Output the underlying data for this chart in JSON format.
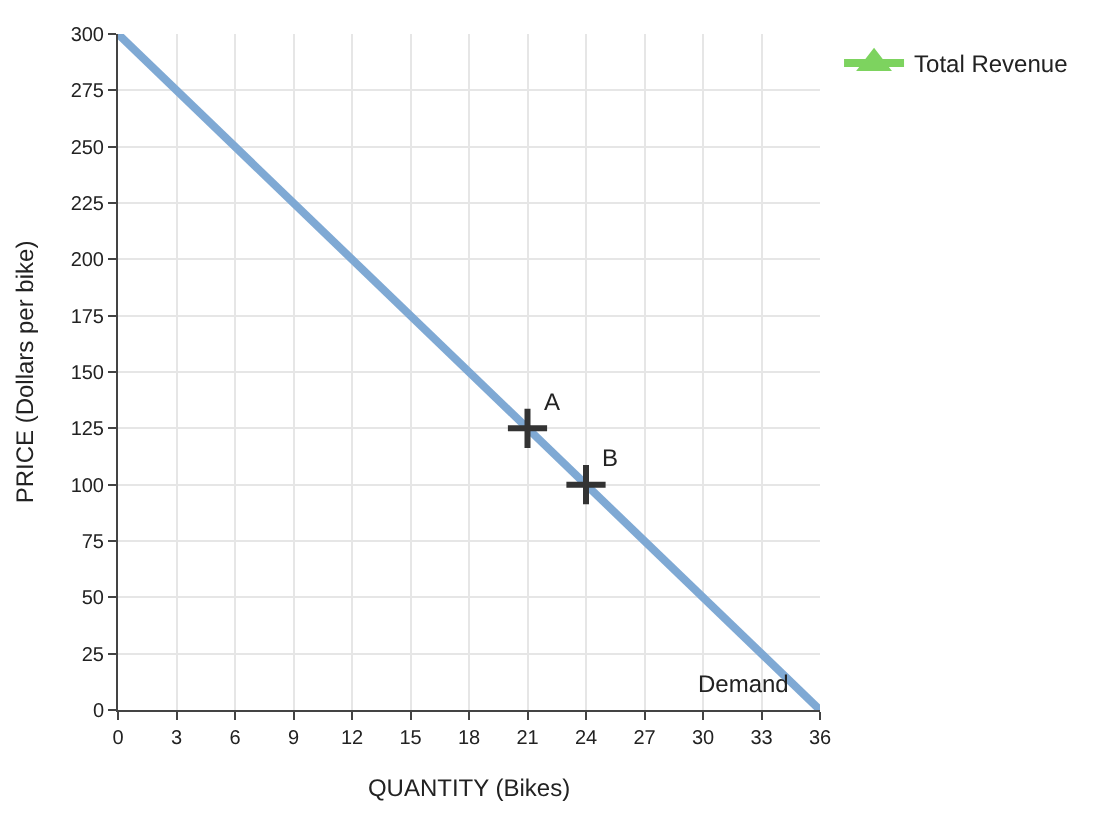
{
  "chart_data": {
    "type": "line",
    "xlabel": "QUANTITY (Bikes)",
    "ylabel": "PRICE (Dollars per bike)",
    "xlim": [
      0,
      36
    ],
    "xticks": [
      0,
      3,
      6,
      9,
      12,
      15,
      18,
      21,
      24,
      27,
      30,
      33,
      36
    ],
    "ylim": [
      0,
      300
    ],
    "yticks": [
      0,
      25,
      50,
      75,
      100,
      125,
      150,
      175,
      200,
      225,
      250,
      275,
      300
    ],
    "grid": true,
    "legend": "top right",
    "series": [
      {
        "color": "#7fa9d4",
        "x": [
          0,
          36
        ],
        "values": [
          300,
          0
        ],
        "marker": "none"
      },
      {
        "type": "scatter",
        "color": "#333333",
        "x": [
          21,
          24
        ],
        "values": [
          125,
          100
        ],
        "marker": "cross"
      },
      {
        "type": "line",
        "name": "Total Revenue",
        "color": "#7dd35f",
        "values": [
          null
        ],
        "marker": "triangle"
      }
    ],
    "annotations": [
      {
        "text": "A",
        "x": 21,
        "y": 125
      },
      {
        "text": "B",
        "x": 24,
        "y": 100
      },
      {
        "text": "Demand",
        "x": 36,
        "y": 0
      }
    ]
  }
}
